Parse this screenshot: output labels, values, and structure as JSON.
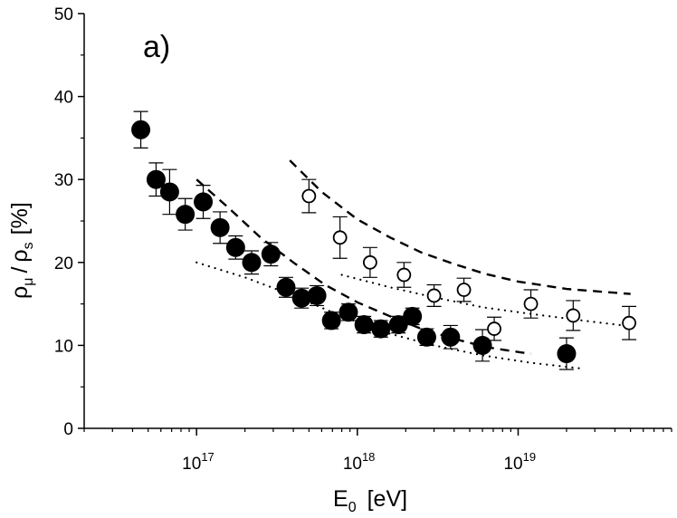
{
  "chart_data": {
    "type": "scatter",
    "panel_label": "a)",
    "xlabel": {
      "base": "E",
      "sub": "0",
      "unit": "[eV]"
    },
    "ylabel": {
      "num": "ρ",
      "num_sub": "μ",
      "sep": "/",
      "den": "ρ",
      "den_sub": "s",
      "unit": "[%]"
    },
    "xscale": "log",
    "xlim": [
      2e+16,
      9e+19
    ],
    "ylim": [
      0,
      50
    ],
    "yticks": [
      0,
      10,
      20,
      30,
      40,
      50
    ],
    "xticks": [
      {
        "value": 1e+17,
        "base": "10",
        "exp": "17"
      },
      {
        "value": 1e+18,
        "base": "10",
        "exp": "18"
      },
      {
        "value": 1e+19,
        "base": "10",
        "exp": "19"
      }
    ],
    "series": [
      {
        "name": "filled",
        "marker": "filled-circle",
        "points": [
          {
            "x": 4.5e+16,
            "y": 36.0,
            "err": 2.2
          },
          {
            "x": 5.6e+16,
            "y": 30.0,
            "err": 2.0
          },
          {
            "x": 6.8e+16,
            "y": 28.5,
            "err": 2.7
          },
          {
            "x": 8.5e+16,
            "y": 25.8,
            "err": 1.9
          },
          {
            "x": 1.1e+17,
            "y": 27.3,
            "err": 2.0
          },
          {
            "x": 1.4e+17,
            "y": 24.2,
            "err": 1.9
          },
          {
            "x": 1.75e+17,
            "y": 21.8,
            "err": 1.4
          },
          {
            "x": 2.2e+17,
            "y": 20.0,
            "err": 1.4
          },
          {
            "x": 2.9e+17,
            "y": 21.0,
            "err": 1.4
          },
          {
            "x": 3.6e+17,
            "y": 17.0,
            "err": 1.2
          },
          {
            "x": 4.5e+17,
            "y": 15.7,
            "err": 1.2
          },
          {
            "x": 5.6e+17,
            "y": 16.0,
            "err": 1.2
          },
          {
            "x": 6.9e+17,
            "y": 13.0,
            "err": 1.0
          },
          {
            "x": 8.8e+17,
            "y": 14.0,
            "err": 1.0
          },
          {
            "x": 1.1e+18,
            "y": 12.5,
            "err": 1.0
          },
          {
            "x": 1.4e+18,
            "y": 12.0,
            "err": 1.0
          },
          {
            "x": 1.8e+18,
            "y": 12.5,
            "err": 1.0
          },
          {
            "x": 2.2e+18,
            "y": 13.5,
            "err": 1.0
          },
          {
            "x": 2.7e+18,
            "y": 11.0,
            "err": 1.0
          },
          {
            "x": 3.8e+18,
            "y": 11.0,
            "err": 1.4
          },
          {
            "x": 6e+18,
            "y": 10.0,
            "err": 1.9
          },
          {
            "x": 2e+19,
            "y": 9.0,
            "err": 1.9
          }
        ]
      },
      {
        "name": "open",
        "marker": "open-circle",
        "points": [
          {
            "x": 5e+17,
            "y": 28.0,
            "err": 2.0
          },
          {
            "x": 7.8e+17,
            "y": 23.0,
            "err": 2.5
          },
          {
            "x": 1.2e+18,
            "y": 20.0,
            "err": 1.8
          },
          {
            "x": 1.95e+18,
            "y": 18.5,
            "err": 1.5
          },
          {
            "x": 3e+18,
            "y": 16.0,
            "err": 1.3
          },
          {
            "x": 4.6e+18,
            "y": 16.7,
            "err": 1.4
          },
          {
            "x": 7.1e+18,
            "y": 12.0,
            "err": 1.4
          },
          {
            "x": 1.2e+19,
            "y": 15.0,
            "err": 1.7
          },
          {
            "x": 2.2e+19,
            "y": 13.6,
            "err": 1.8
          },
          {
            "x": 4.9e+19,
            "y": 12.7,
            "err": 2.0
          }
        ]
      }
    ],
    "curves": [
      {
        "name": "dashed-lower",
        "style": "dashed",
        "points": [
          [
            1e+17,
            30.0
          ],
          [
            1.6e+17,
            26.5
          ],
          [
            2.5e+17,
            23.0
          ],
          [
            4e+17,
            20.0
          ],
          [
            6.3e+17,
            17.3
          ],
          [
            1e+18,
            15.2
          ],
          [
            1.6e+18,
            13.5
          ],
          [
            2.5e+18,
            12.0
          ],
          [
            4e+18,
            10.8
          ],
          [
            6.3e+18,
            9.8
          ],
          [
            1e+19,
            9.2
          ],
          [
            1.2e+19,
            9.0
          ]
        ]
      },
      {
        "name": "dashed-upper",
        "style": "dashed",
        "points": [
          [
            3.8e+17,
            32.3
          ],
          [
            6e+17,
            28.5
          ],
          [
            1e+18,
            25.2
          ],
          [
            1.6e+18,
            23.0
          ],
          [
            2.5e+18,
            21.2
          ],
          [
            4e+18,
            19.8
          ],
          [
            6.3e+18,
            18.6
          ],
          [
            1e+19,
            17.7
          ],
          [
            2e+19,
            16.8
          ],
          [
            5e+19,
            16.2
          ]
        ]
      },
      {
        "name": "dotted-lower",
        "style": "dotted",
        "points": [
          [
            1e+17,
            20.0
          ],
          [
            2e+17,
            18.2
          ],
          [
            4e+17,
            16.0
          ],
          [
            8e+17,
            13.5
          ],
          [
            1.6e+18,
            11.4
          ],
          [
            3e+18,
            10.0
          ],
          [
            6e+18,
            8.8
          ],
          [
            1.2e+19,
            7.9
          ],
          [
            2.5e+19,
            7.2
          ]
        ]
      },
      {
        "name": "dotted-upper",
        "style": "dotted",
        "points": [
          [
            8e+17,
            18.5
          ],
          [
            1.6e+18,
            17.0
          ],
          [
            3e+18,
            15.8
          ],
          [
            6e+18,
            14.6
          ],
          [
            1.2e+19,
            13.8
          ],
          [
            2.5e+19,
            13.0
          ],
          [
            5e+19,
            12.3
          ]
        ]
      }
    ]
  }
}
